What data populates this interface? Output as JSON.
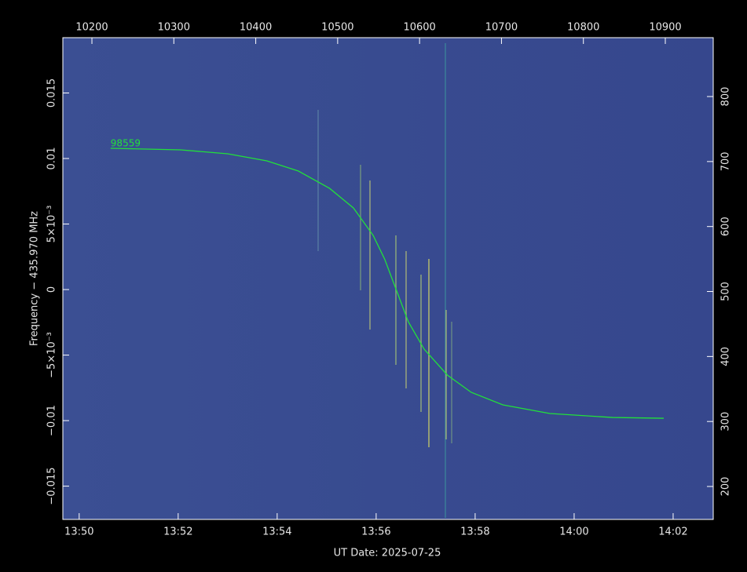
{
  "chart_data": {
    "type": "line",
    "xlabel": "UT Date: 2025-07-25",
    "ylabel": "Frequency − 435.970 MHz",
    "x": [
      830.635,
      832.05,
      833.0,
      833.79,
      834.43,
      835.06,
      835.54,
      835.94,
      836.17,
      836.41,
      836.65,
      836.97,
      837.44,
      837.92,
      838.56,
      839.51,
      840.78,
      841.81
    ],
    "series": [
      {
        "name": "98559",
        "color": "#22e03a",
        "values": [
          0.01078,
          0.01066,
          0.01036,
          0.00982,
          0.00904,
          0.00772,
          0.00623,
          0.00413,
          0.00234,
          -6e-05,
          -0.00246,
          -0.00455,
          -0.00653,
          -0.00784,
          -0.0088,
          -0.00946,
          -0.00976,
          -0.00982
        ]
      }
    ],
    "xlim": [
      829.67,
      842.81
    ],
    "xticks": [
      {
        "value": 830,
        "label": "13:50"
      },
      {
        "value": 832,
        "label": "13:52"
      },
      {
        "value": 834,
        "label": "13:54"
      },
      {
        "value": 836,
        "label": "13:56"
      },
      {
        "value": 838,
        "label": "13:58"
      },
      {
        "value": 840,
        "label": "14:00"
      },
      {
        "value": 842,
        "label": "14:02"
      }
    ],
    "x2lim": [
      10164.5,
      10958.5
    ],
    "x2ticks": [
      10200,
      10300,
      10400,
      10500,
      10600,
      10700,
      10800,
      10900
    ],
    "ylim": [
      -0.01754,
      0.01922
    ],
    "yticks": [
      {
        "value": -0.015,
        "label": "−0.015"
      },
      {
        "value": -0.01,
        "label": "−0.01"
      },
      {
        "value": -0.005,
        "label": "−5×10⁻³"
      },
      0,
      {
        "value": 0.005,
        "label": "5×10⁻³"
      },
      {
        "value": 0.01,
        "label": "0.01"
      },
      {
        "value": 0.015,
        "label": "0.015"
      }
    ],
    "y2lim": [
      149.3,
      890.6
    ],
    "y2ticks": [
      200,
      300,
      400,
      500,
      600,
      700,
      800
    ]
  }
}
